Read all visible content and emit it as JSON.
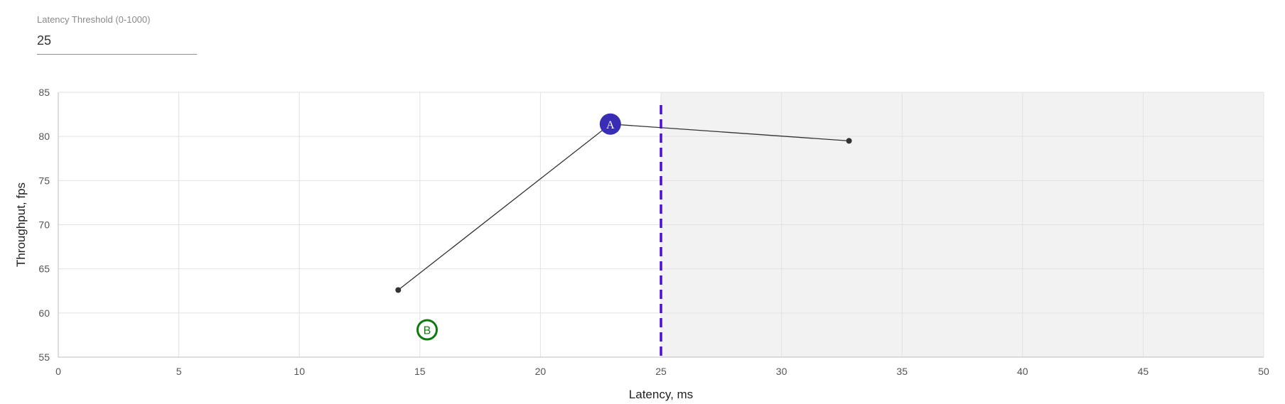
{
  "threshold_control": {
    "label": "Latency Threshold (0-1000)",
    "value": "25"
  },
  "chart_data": {
    "type": "line",
    "xlabel": "Latency, ms",
    "ylabel": "Throughput, fps",
    "xlim": [
      0,
      50
    ],
    "ylim": [
      55,
      85
    ],
    "xticks": [
      0,
      5,
      10,
      15,
      20,
      25,
      30,
      35,
      40,
      45,
      50
    ],
    "yticks": [
      55,
      60,
      65,
      70,
      75,
      80,
      85
    ],
    "grid": true,
    "threshold": 25,
    "region_beyond_threshold": "shaded",
    "series": [
      {
        "points": [
          {
            "x": 14.1,
            "y": 62.6
          },
          {
            "x": 22.9,
            "y": 81.4
          },
          {
            "x": 32.8,
            "y": 79.5
          }
        ]
      }
    ],
    "markers": [
      {
        "label": "A",
        "x": 22.9,
        "y": 81.4,
        "style": "filled",
        "color": "#3a2db5"
      },
      {
        "label": "B",
        "x": 15.3,
        "y": 58.1,
        "style": "outlined",
        "color": "#0d7a0d"
      }
    ],
    "colors": {
      "threshold_line": "#4a0fd0",
      "line": "#333333",
      "shade": "#f2f2f2",
      "grid": "#e2e2e2"
    }
  }
}
